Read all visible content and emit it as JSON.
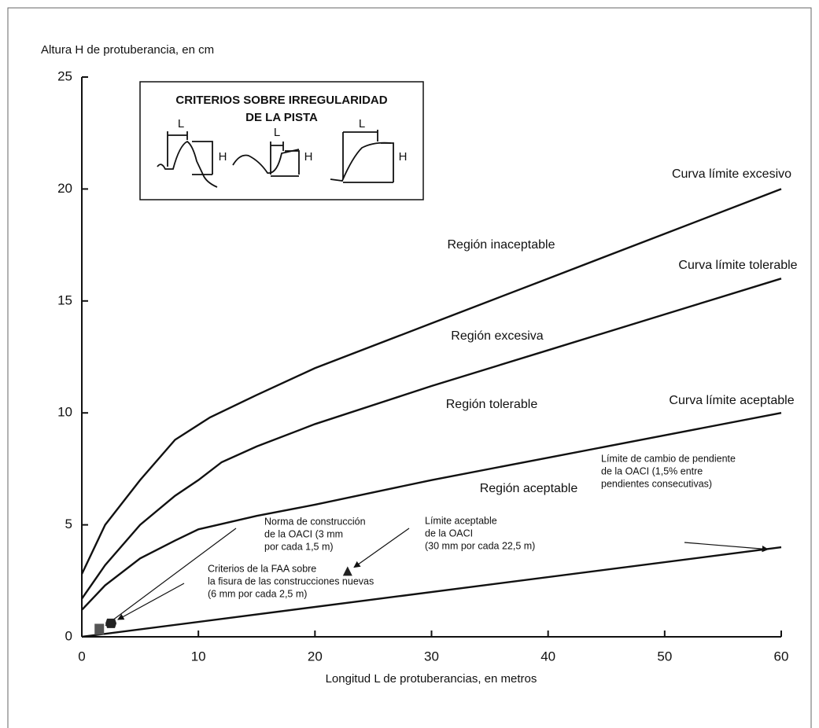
{
  "chart_data": {
    "type": "line",
    "y_label": "Altura H de protuberancia, en cm",
    "x_label": "Longitud L de protuberancias, en metros",
    "xlim": [
      0,
      60
    ],
    "xticks": [
      0,
      10,
      20,
      30,
      40,
      50,
      60
    ],
    "ylim": [
      0,
      25
    ],
    "yticks": [
      0,
      5,
      10,
      15,
      20,
      25
    ],
    "series": [
      {
        "name": "Curva límite excesivo",
        "color": "#111111",
        "x": [
          0,
          2,
          5,
          8,
          11,
          15,
          20,
          30,
          40,
          50,
          60
        ],
        "values": [
          2.8,
          5,
          7,
          8.8,
          9.8,
          10.8,
          12,
          14,
          16,
          18,
          20
        ]
      },
      {
        "name": "Curva límite tolerable",
        "color": "#111111",
        "x": [
          0,
          2,
          5,
          8,
          10,
          12,
          15,
          20,
          30,
          40,
          50,
          60
        ],
        "values": [
          1.7,
          3.2,
          5,
          6.3,
          7,
          7.8,
          8.5,
          9.5,
          11.2,
          12.8,
          14.4,
          16
        ]
      },
      {
        "name": "Curva límite aceptable",
        "color": "#111111",
        "x": [
          0,
          2,
          5,
          8,
          10,
          15,
          20,
          30,
          40,
          50,
          60
        ],
        "values": [
          1.2,
          2.3,
          3.5,
          4.3,
          4.8,
          5.4,
          5.9,
          7,
          8,
          9,
          10
        ]
      },
      {
        "name": null,
        "color": "#111111",
        "x": [
          0,
          60
        ],
        "values": [
          0,
          4
        ]
      }
    ],
    "regions": [
      "Región inaceptable",
      "Región excesiva",
      "Región tolerable",
      "Región aceptable"
    ],
    "annotations": [
      {
        "text": [
          "Norma de construcción",
          "de la OACI (3 mm",
          "por cada 1,5 m)"
        ],
        "x": 1.5,
        "y": 0.3,
        "marker": "square"
      },
      {
        "text": [
          "Límite aceptable",
          "de la OACI",
          "(30 mm por cada 22,5 m)"
        ],
        "x": 22.8,
        "y": 2.9,
        "marker": "triangle"
      },
      {
        "text": [
          "Criterios de la FAA sobre",
          "la fisura de las construcciones nuevas",
          "(6 mm por cada 2,5 m)"
        ],
        "x": 2.5,
        "y": 0.6,
        "marker": "hexagon"
      },
      {
        "text": [
          "Límite de cambio de pendiente",
          "de la OACI (1,5% entre",
          "pendientes consecutivas)"
        ],
        "x": 59,
        "y": 3.9
      }
    ],
    "inset": {
      "title": [
        "CRITERIOS SOBRE IRREGULARIDAD",
        "DE LA PISTA"
      ],
      "length_label": "L",
      "height_label": "H"
    }
  }
}
